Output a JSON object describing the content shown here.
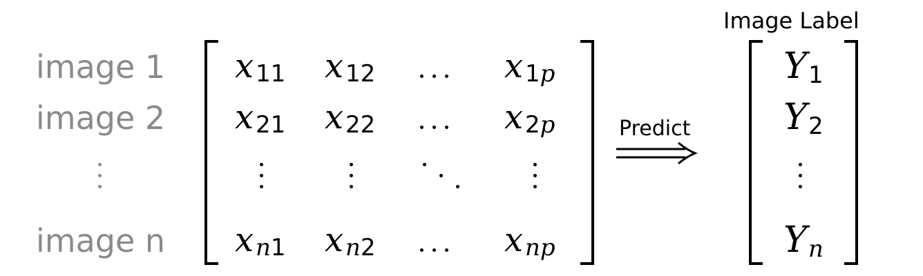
{
  "row_labels": {
    "r1": "image 1",
    "r2": "image 2",
    "rn": "image n"
  },
  "matrix": {
    "var": "x",
    "row1": [
      {
        "var": "x",
        "sub": "11"
      },
      {
        "var": "x",
        "sub": "12"
      },
      {
        "var": "x",
        "sub": "1",
        "sub_italic": "p"
      }
    ],
    "row2": [
      {
        "var": "x",
        "sub": "21"
      },
      {
        "var": "x",
        "sub": "22"
      },
      {
        "var": "x",
        "sub": "2",
        "sub_italic": "p"
      }
    ],
    "rowN": [
      {
        "var": "x",
        "sub_italic": "n",
        "sub": "1"
      },
      {
        "var": "x",
        "sub_italic": "n",
        "sub": "2"
      },
      {
        "var": "x",
        "sub_italic": "np"
      }
    ]
  },
  "arrow": {
    "label": "Predict"
  },
  "labels_vector": {
    "header": "Image Label",
    "y1": {
      "var": "Y",
      "sub": "1"
    },
    "y2": {
      "var": "Y",
      "sub": "2"
    },
    "yn": {
      "var": "Y",
      "sub_italic": "n"
    }
  },
  "colors": {
    "row_label": "#8a8a8a",
    "ink": "#000000"
  }
}
